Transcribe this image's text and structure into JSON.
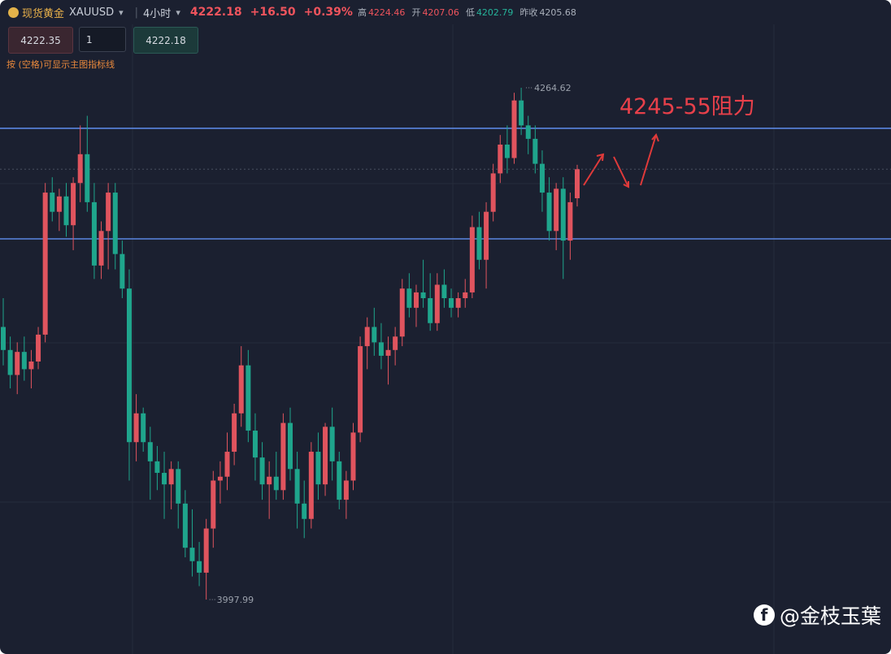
{
  "header": {
    "name": "现货黄金",
    "symbol": "XAUUSD",
    "period": "4小时",
    "price": "4222.18",
    "change": "+16.50",
    "change_pct": "+0.39%",
    "high_label": "高",
    "high": "4224.46",
    "open_label": "开",
    "open": "4207.06",
    "low_label": "低",
    "low": "4202.79",
    "prev_label": "昨收",
    "prev": "4205.68"
  },
  "order": {
    "sell": "4222.35",
    "qty": "1",
    "buy": "4222.18"
  },
  "hint": "按 (空格)可显示主图指标线",
  "watermark": "@金枝玉葉",
  "chart": {
    "type": "candlestick",
    "annotation": "4245-55阻力",
    "levels": [
      4243.5,
      4185.9
    ],
    "up_color": "#e0545e",
    "down_color": "#1fa58c",
    "level_color": "#5b86e0",
    "candles": [
      [
        4140,
        4155,
        4120,
        4128
      ],
      [
        4128,
        4135,
        4108,
        4115
      ],
      [
        4115,
        4132,
        4105,
        4127
      ],
      [
        4127,
        4135,
        4112,
        4118
      ],
      [
        4118,
        4128,
        4108,
        4122
      ],
      [
        4122,
        4140,
        4118,
        4136
      ],
      [
        4136,
        4215,
        4132,
        4210
      ],
      [
        4210,
        4218,
        4195,
        4200
      ],
      [
        4200,
        4212,
        4190,
        4208
      ],
      [
        4208,
        4215,
        4187,
        4193
      ],
      [
        4193,
        4218,
        4180,
        4215
      ],
      [
        4215,
        4245,
        4205,
        4230
      ],
      [
        4230,
        4250,
        4200,
        4205
      ],
      [
        4205,
        4215,
        4165,
        4172
      ],
      [
        4172,
        4195,
        4165,
        4190
      ],
      [
        4190,
        4215,
        4170,
        4210
      ],
      [
        4210,
        4215,
        4170,
        4178
      ],
      [
        4178,
        4185,
        4155,
        4160
      ],
      [
        4160,
        4170,
        4060,
        4080
      ],
      [
        4080,
        4105,
        4070,
        4095
      ],
      [
        4095,
        4098,
        4075,
        4080
      ],
      [
        4080,
        4088,
        4050,
        4070
      ],
      [
        4070,
        4078,
        4055,
        4064
      ],
      [
        4064,
        4075,
        4040,
        4058
      ],
      [
        4058,
        4070,
        4045,
        4066
      ],
      [
        4066,
        4070,
        4035,
        4048
      ],
      [
        4048,
        4055,
        4020,
        4025
      ],
      [
        4025,
        4045,
        4010,
        4018
      ],
      [
        4018,
        4028,
        4005,
        4012
      ],
      [
        4012,
        4040,
        3997.99,
        4035
      ],
      [
        4035,
        4065,
        4025,
        4060
      ],
      [
        4060,
        4070,
        4048,
        4062
      ],
      [
        4062,
        4085,
        4055,
        4075
      ],
      [
        4075,
        4100,
        4068,
        4095
      ],
      [
        4095,
        4130,
        4088,
        4120
      ],
      [
        4120,
        4128,
        4080,
        4086
      ],
      [
        4086,
        4095,
        4060,
        4072
      ],
      [
        4072,
        4080,
        4050,
        4058
      ],
      [
        4058,
        4070,
        4040,
        4062
      ],
      [
        4062,
        4075,
        4050,
        4055
      ],
      [
        4055,
        4095,
        4050,
        4090
      ],
      [
        4090,
        4098,
        4060,
        4066
      ],
      [
        4066,
        4075,
        4035,
        4048
      ],
      [
        4048,
        4060,
        4030,
        4040
      ],
      [
        4040,
        4080,
        4035,
        4075
      ],
      [
        4075,
        4085,
        4050,
        4058
      ],
      [
        4058,
        4090,
        4052,
        4088
      ],
      [
        4088,
        4098,
        4060,
        4070
      ],
      [
        4070,
        4075,
        4045,
        4050
      ],
      [
        4050,
        4065,
        4040,
        4060
      ],
      [
        4060,
        4090,
        4055,
        4085
      ],
      [
        4085,
        4135,
        4080,
        4130
      ],
      [
        4130,
        4145,
        4118,
        4140
      ],
      [
        4140,
        4150,
        4125,
        4132
      ],
      [
        4132,
        4142,
        4118,
        4125
      ],
      [
        4125,
        4135,
        4110,
        4128
      ],
      [
        4128,
        4140,
        4120,
        4135
      ],
      [
        4135,
        4165,
        4130,
        4160
      ],
      [
        4160,
        4168,
        4145,
        4150
      ],
      [
        4150,
        4162,
        4140,
        4158
      ],
      [
        4158,
        4175,
        4150,
        4155
      ],
      [
        4155,
        4168,
        4138,
        4142
      ],
      [
        4142,
        4168,
        4138,
        4162
      ],
      [
        4162,
        4170,
        4150,
        4155
      ],
      [
        4155,
        4160,
        4145,
        4150
      ],
      [
        4150,
        4158,
        4145,
        4155
      ],
      [
        4155,
        4165,
        4150,
        4158
      ],
      [
        4158,
        4198,
        4155,
        4192
      ],
      [
        4192,
        4200,
        4170,
        4175
      ],
      [
        4175,
        4205,
        4160,
        4200
      ],
      [
        4200,
        4225,
        4195,
        4220
      ],
      [
        4220,
        4240,
        4215,
        4235
      ],
      [
        4235,
        4245,
        4220,
        4228
      ],
      [
        4228,
        4262,
        4225,
        4258
      ],
      [
        4258,
        4264.62,
        4240,
        4245
      ],
      [
        4245,
        4250,
        4230,
        4238
      ],
      [
        4238,
        4245,
        4220,
        4225
      ],
      [
        4225,
        4232,
        4200,
        4210
      ],
      [
        4210,
        4218,
        4185,
        4190
      ],
      [
        4190,
        4215,
        4180,
        4212
      ],
      [
        4212,
        4218,
        4165,
        4185
      ],
      [
        4185,
        4210,
        4175,
        4205
      ],
      [
        4207.06,
        4224.46,
        4202.79,
        4222.18
      ]
    ]
  }
}
